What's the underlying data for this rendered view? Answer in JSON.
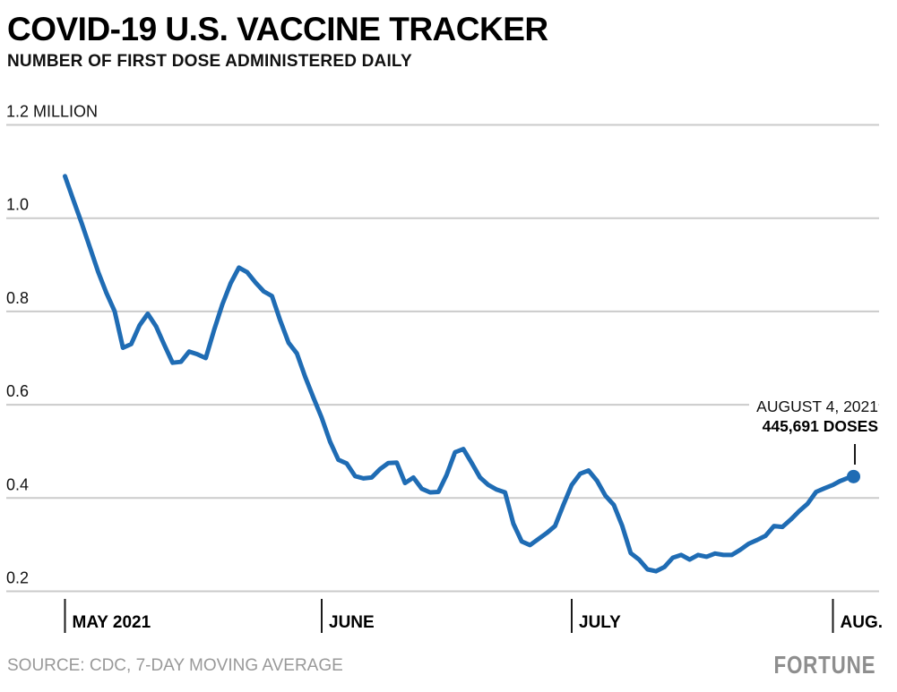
{
  "chart_data": {
    "type": "line",
    "title": "COVID-19 U.S. VACCINE TRACKER",
    "subtitle": "NUMBER OF FIRST DOSE ADMINISTERED DAILY",
    "unit": "millions of first doses per day, 7-day moving average",
    "x_start": "2021-05-01",
    "x_end": "2021-08-04",
    "frequency": "daily",
    "ylim": [
      0.2,
      1.2
    ],
    "grid": true,
    "legend": "none",
    "x_ticks": [
      {
        "label": "MAY 2021",
        "day": 0
      },
      {
        "label": "JUNE",
        "day": 31
      },
      {
        "label": "JULY",
        "day": 61
      },
      {
        "label": "AUG.",
        "day": 92
      }
    ],
    "y_ticks": [
      {
        "value": 1.2,
        "label": "1.2 MILLION"
      },
      {
        "value": 1.0,
        "label": "1.0"
      },
      {
        "value": 0.8,
        "label": "0.8"
      },
      {
        "value": 0.6,
        "label": "0.6"
      },
      {
        "value": 0.4,
        "label": "0.4"
      },
      {
        "value": 0.2,
        "label": "0.2"
      }
    ],
    "values": [
      1.09,
      1.04,
      0.99,
      0.938,
      0.885,
      0.84,
      0.8,
      0.722,
      0.73,
      0.77,
      0.795,
      0.768,
      0.728,
      0.69,
      0.692,
      0.714,
      0.708,
      0.7,
      0.76,
      0.815,
      0.86,
      0.894,
      0.884,
      0.862,
      0.843,
      0.833,
      0.78,
      0.733,
      0.71,
      0.66,
      0.615,
      0.572,
      0.521,
      0.482,
      0.474,
      0.447,
      0.442,
      0.444,
      0.462,
      0.475,
      0.476,
      0.432,
      0.444,
      0.42,
      0.412,
      0.413,
      0.45,
      0.498,
      0.505,
      0.475,
      0.444,
      0.428,
      0.418,
      0.412,
      0.345,
      0.307,
      0.299,
      0.312,
      0.325,
      0.34,
      0.385,
      0.428,
      0.452,
      0.459,
      0.437,
      0.405,
      0.385,
      0.34,
      0.282,
      0.268,
      0.247,
      0.243,
      0.252,
      0.272,
      0.278,
      0.268,
      0.278,
      0.274,
      0.281,
      0.278,
      0.278,
      0.289,
      0.302,
      0.31,
      0.319,
      0.34,
      0.338,
      0.354,
      0.372,
      0.388,
      0.413,
      0.421,
      0.428,
      0.436,
      0.442,
      0.446
    ],
    "annotation": {
      "line1": "AUGUST 4, 2021",
      "line2": "445,691 DOSES",
      "date": "2021-08-04",
      "doses": 445691,
      "value_millions": 0.445691
    }
  },
  "footer": {
    "source": "SOURCE: CDC, 7-DAY MOVING AVERAGE",
    "brand": "FORTUNE"
  },
  "colors": {
    "line": "#1f6cb4",
    "grid": "#cbcbcb",
    "axis": "#1a1a1a",
    "label": "#111111",
    "muted": "#999999"
  }
}
